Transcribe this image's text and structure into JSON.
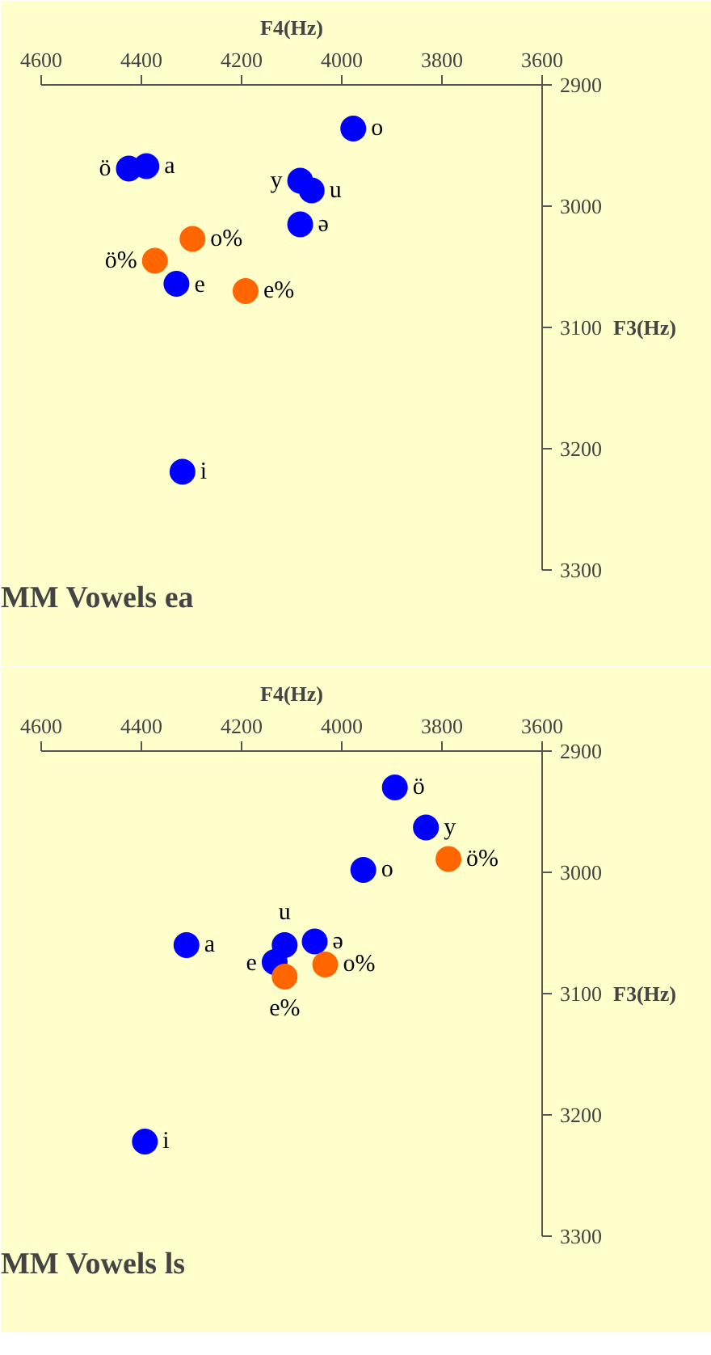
{
  "chart_data": [
    {
      "type": "scatter",
      "title": "MM Vowels ea",
      "xlabel": "F4(Hz)",
      "ylabel": "F3(Hz)",
      "xlim": [
        4600,
        3600
      ],
      "ylim": [
        3300,
        2900
      ],
      "xticks": [
        4600,
        4400,
        4200,
        4000,
        3800,
        3600
      ],
      "yticks": [
        2900,
        3000,
        3100,
        3200,
        3300
      ],
      "grid": false,
      "legend": false,
      "marker": "circle",
      "series": [
        {
          "name": "o",
          "color": "#0000ff",
          "x": [
            3977
          ],
          "values": [
            2936
          ]
        },
        {
          "name": "ö",
          "color": "#0000ff",
          "x": [
            4425
          ],
          "values": [
            2969
          ]
        },
        {
          "name": "a",
          "color": "#0000ff",
          "x": [
            4390
          ],
          "values": [
            2967
          ]
        },
        {
          "name": "y",
          "color": "#0000ff",
          "x": [
            4083
          ],
          "values": [
            2979
          ]
        },
        {
          "name": "u",
          "color": "#0000ff",
          "x": [
            4060
          ],
          "values": [
            2987
          ]
        },
        {
          "name": "ə",
          "color": "#0000ff",
          "x": [
            4083
          ],
          "values": [
            3015
          ]
        },
        {
          "name": "o%",
          "color": "#ff6600",
          "x": [
            4298
          ],
          "values": [
            3027
          ]
        },
        {
          "name": "ö%",
          "color": "#ff6600",
          "x": [
            4373
          ],
          "values": [
            3045
          ]
        },
        {
          "name": "e",
          "color": "#0000ff",
          "x": [
            4330
          ],
          "values": [
            3064
          ]
        },
        {
          "name": "e%",
          "color": "#ff6600",
          "x": [
            4192
          ],
          "values": [
            3070
          ]
        },
        {
          "name": "i",
          "color": "#0000ff",
          "x": [
            4318
          ],
          "values": [
            3219
          ]
        }
      ]
    },
    {
      "type": "scatter",
      "title": "MM Vowels ls",
      "xlabel": "F4(Hz)",
      "ylabel": "F3(Hz)",
      "xlim": [
        4600,
        3600
      ],
      "ylim": [
        3300,
        2900
      ],
      "xticks": [
        4600,
        4400,
        4200,
        4000,
        3800,
        3600
      ],
      "yticks": [
        2900,
        3000,
        3100,
        3200,
        3300
      ],
      "grid": false,
      "legend": false,
      "marker": "circle",
      "series": [
        {
          "name": "ö",
          "color": "#0000ff",
          "x": [
            3894
          ],
          "values": [
            2930
          ]
        },
        {
          "name": "y",
          "color": "#0000ff",
          "x": [
            3832
          ],
          "values": [
            2963
          ]
        },
        {
          "name": "ö%",
          "color": "#ff6600",
          "x": [
            3787
          ],
          "values": [
            2989
          ]
        },
        {
          "name": "o",
          "color": "#0000ff",
          "x": [
            3957
          ],
          "values": [
            2998
          ]
        },
        {
          "name": "a",
          "color": "#0000ff",
          "x": [
            4310
          ],
          "values": [
            3060
          ]
        },
        {
          "name": "u",
          "color": "#0000ff",
          "x": [
            4114
          ],
          "values": [
            3060
          ]
        },
        {
          "name": "ə",
          "color": "#0000ff",
          "x": [
            4054
          ],
          "values": [
            3057
          ]
        },
        {
          "name": "e",
          "color": "#0000ff",
          "x": [
            4134
          ],
          "values": [
            3074
          ]
        },
        {
          "name": "o%",
          "color": "#ff6600",
          "x": [
            4033
          ],
          "values": [
            3076
          ]
        },
        {
          "name": "e%",
          "color": "#ff6600",
          "x": [
            4114
          ],
          "values": [
            3086
          ]
        },
        {
          "name": "i",
          "color": "#0000ff",
          "x": [
            4393
          ],
          "values": [
            3222
          ]
        }
      ]
    }
  ]
}
